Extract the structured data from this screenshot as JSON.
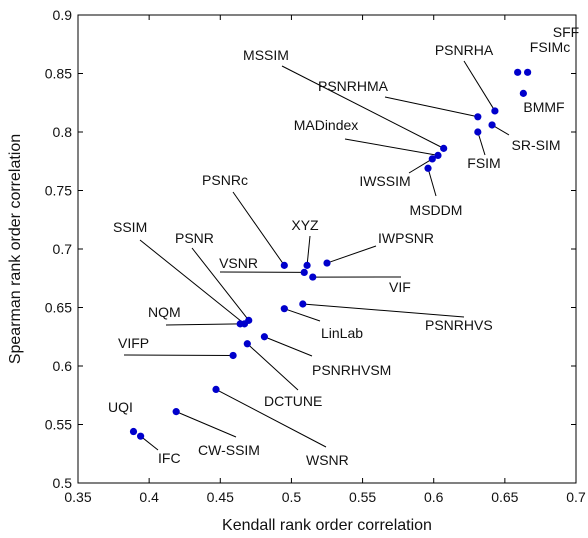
{
  "chart_data": {
    "type": "scatter",
    "xlabel": "Kendall rank order correlation",
    "ylabel": "Spearman rank order correlation",
    "xlim": [
      0.35,
      0.7
    ],
    "ylim": [
      0.5,
      0.9
    ],
    "xticks": [
      "0.35",
      "0.4",
      "0.45",
      "0.5",
      "0.55",
      "0.6",
      "0.65",
      "0.7"
    ],
    "yticks": [
      "0.5",
      "0.55",
      "0.6",
      "0.65",
      "0.7",
      "0.75",
      "0.8",
      "0.85",
      "0.9"
    ],
    "grid": false,
    "marker_color": "#0000cc",
    "points": [
      {
        "label": "SFF",
        "x": 0.659,
        "y": 0.851
      },
      {
        "label": "FSIMc",
        "x": 0.666,
        "y": 0.851
      },
      {
        "label": "BMMF",
        "x": 0.663,
        "y": 0.833
      },
      {
        "label": "PSNRHA",
        "x": 0.643,
        "y": 0.818
      },
      {
        "label": "PSNRHMA",
        "x": 0.631,
        "y": 0.813
      },
      {
        "label": "SR-SIM",
        "x": 0.641,
        "y": 0.806
      },
      {
        "label": "FSIM",
        "x": 0.631,
        "y": 0.8
      },
      {
        "label": "MSSIM",
        "x": 0.607,
        "y": 0.786
      },
      {
        "label": "MADindex",
        "x": 0.603,
        "y": 0.78
      },
      {
        "label": "IWSSIM",
        "x": 0.599,
        "y": 0.777
      },
      {
        "label": "MSDDM",
        "x": 0.596,
        "y": 0.769
      },
      {
        "label": "PSNRc",
        "x": 0.495,
        "y": 0.686
      },
      {
        "label": "XYZ",
        "x": 0.511,
        "y": 0.686
      },
      {
        "label": "IWPSNR",
        "x": 0.525,
        "y": 0.688
      },
      {
        "label": "VSNR",
        "x": 0.509,
        "y": 0.68
      },
      {
        "label": "VIF",
        "x": 0.515,
        "y": 0.676
      },
      {
        "label": "LinLab",
        "x": 0.495,
        "y": 0.649
      },
      {
        "label": "PSNRHVS",
        "x": 0.508,
        "y": 0.653
      },
      {
        "label": "SSIM",
        "x": 0.467,
        "y": 0.636
      },
      {
        "label": "PSNR",
        "x": 0.47,
        "y": 0.639
      },
      {
        "label": "NQM",
        "x": 0.464,
        "y": 0.636
      },
      {
        "label": "PSNRHVSM",
        "x": 0.481,
        "y": 0.625
      },
      {
        "label": "DCTUNE",
        "x": 0.469,
        "y": 0.619
      },
      {
        "label": "VIFP",
        "x": 0.459,
        "y": 0.609
      },
      {
        "label": "WSNR",
        "x": 0.447,
        "y": 0.58
      },
      {
        "label": "CW-SSIM",
        "x": 0.419,
        "y": 0.561
      },
      {
        "label": "UQI",
        "x": 0.389,
        "y": 0.544
      },
      {
        "label": "IFC",
        "x": 0.394,
        "y": 0.54
      }
    ]
  }
}
